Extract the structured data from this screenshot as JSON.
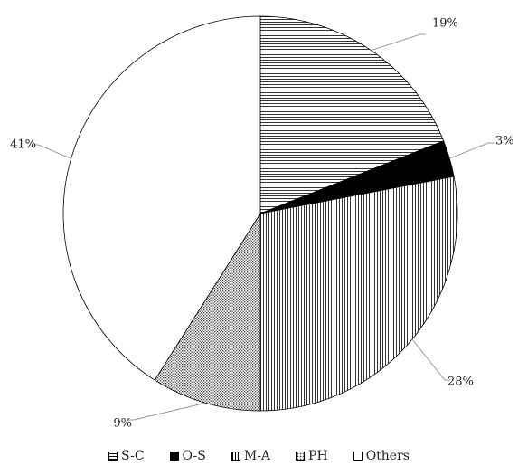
{
  "chart_data": {
    "type": "pie",
    "categories": [
      "S-C",
      "O-S",
      "M-A",
      "PH",
      "Others"
    ],
    "values": [
      19,
      3,
      28,
      9,
      41
    ],
    "data_labels": [
      "19%",
      "3%",
      "28%",
      "9%",
      "41%"
    ],
    "fills": [
      "horizontal-lines",
      "solid-black",
      "vertical-lines",
      "dotted",
      "white"
    ],
    "title": "",
    "legend_position": "bottom",
    "start_angle": "12 o'clock",
    "direction": "clockwise"
  }
}
